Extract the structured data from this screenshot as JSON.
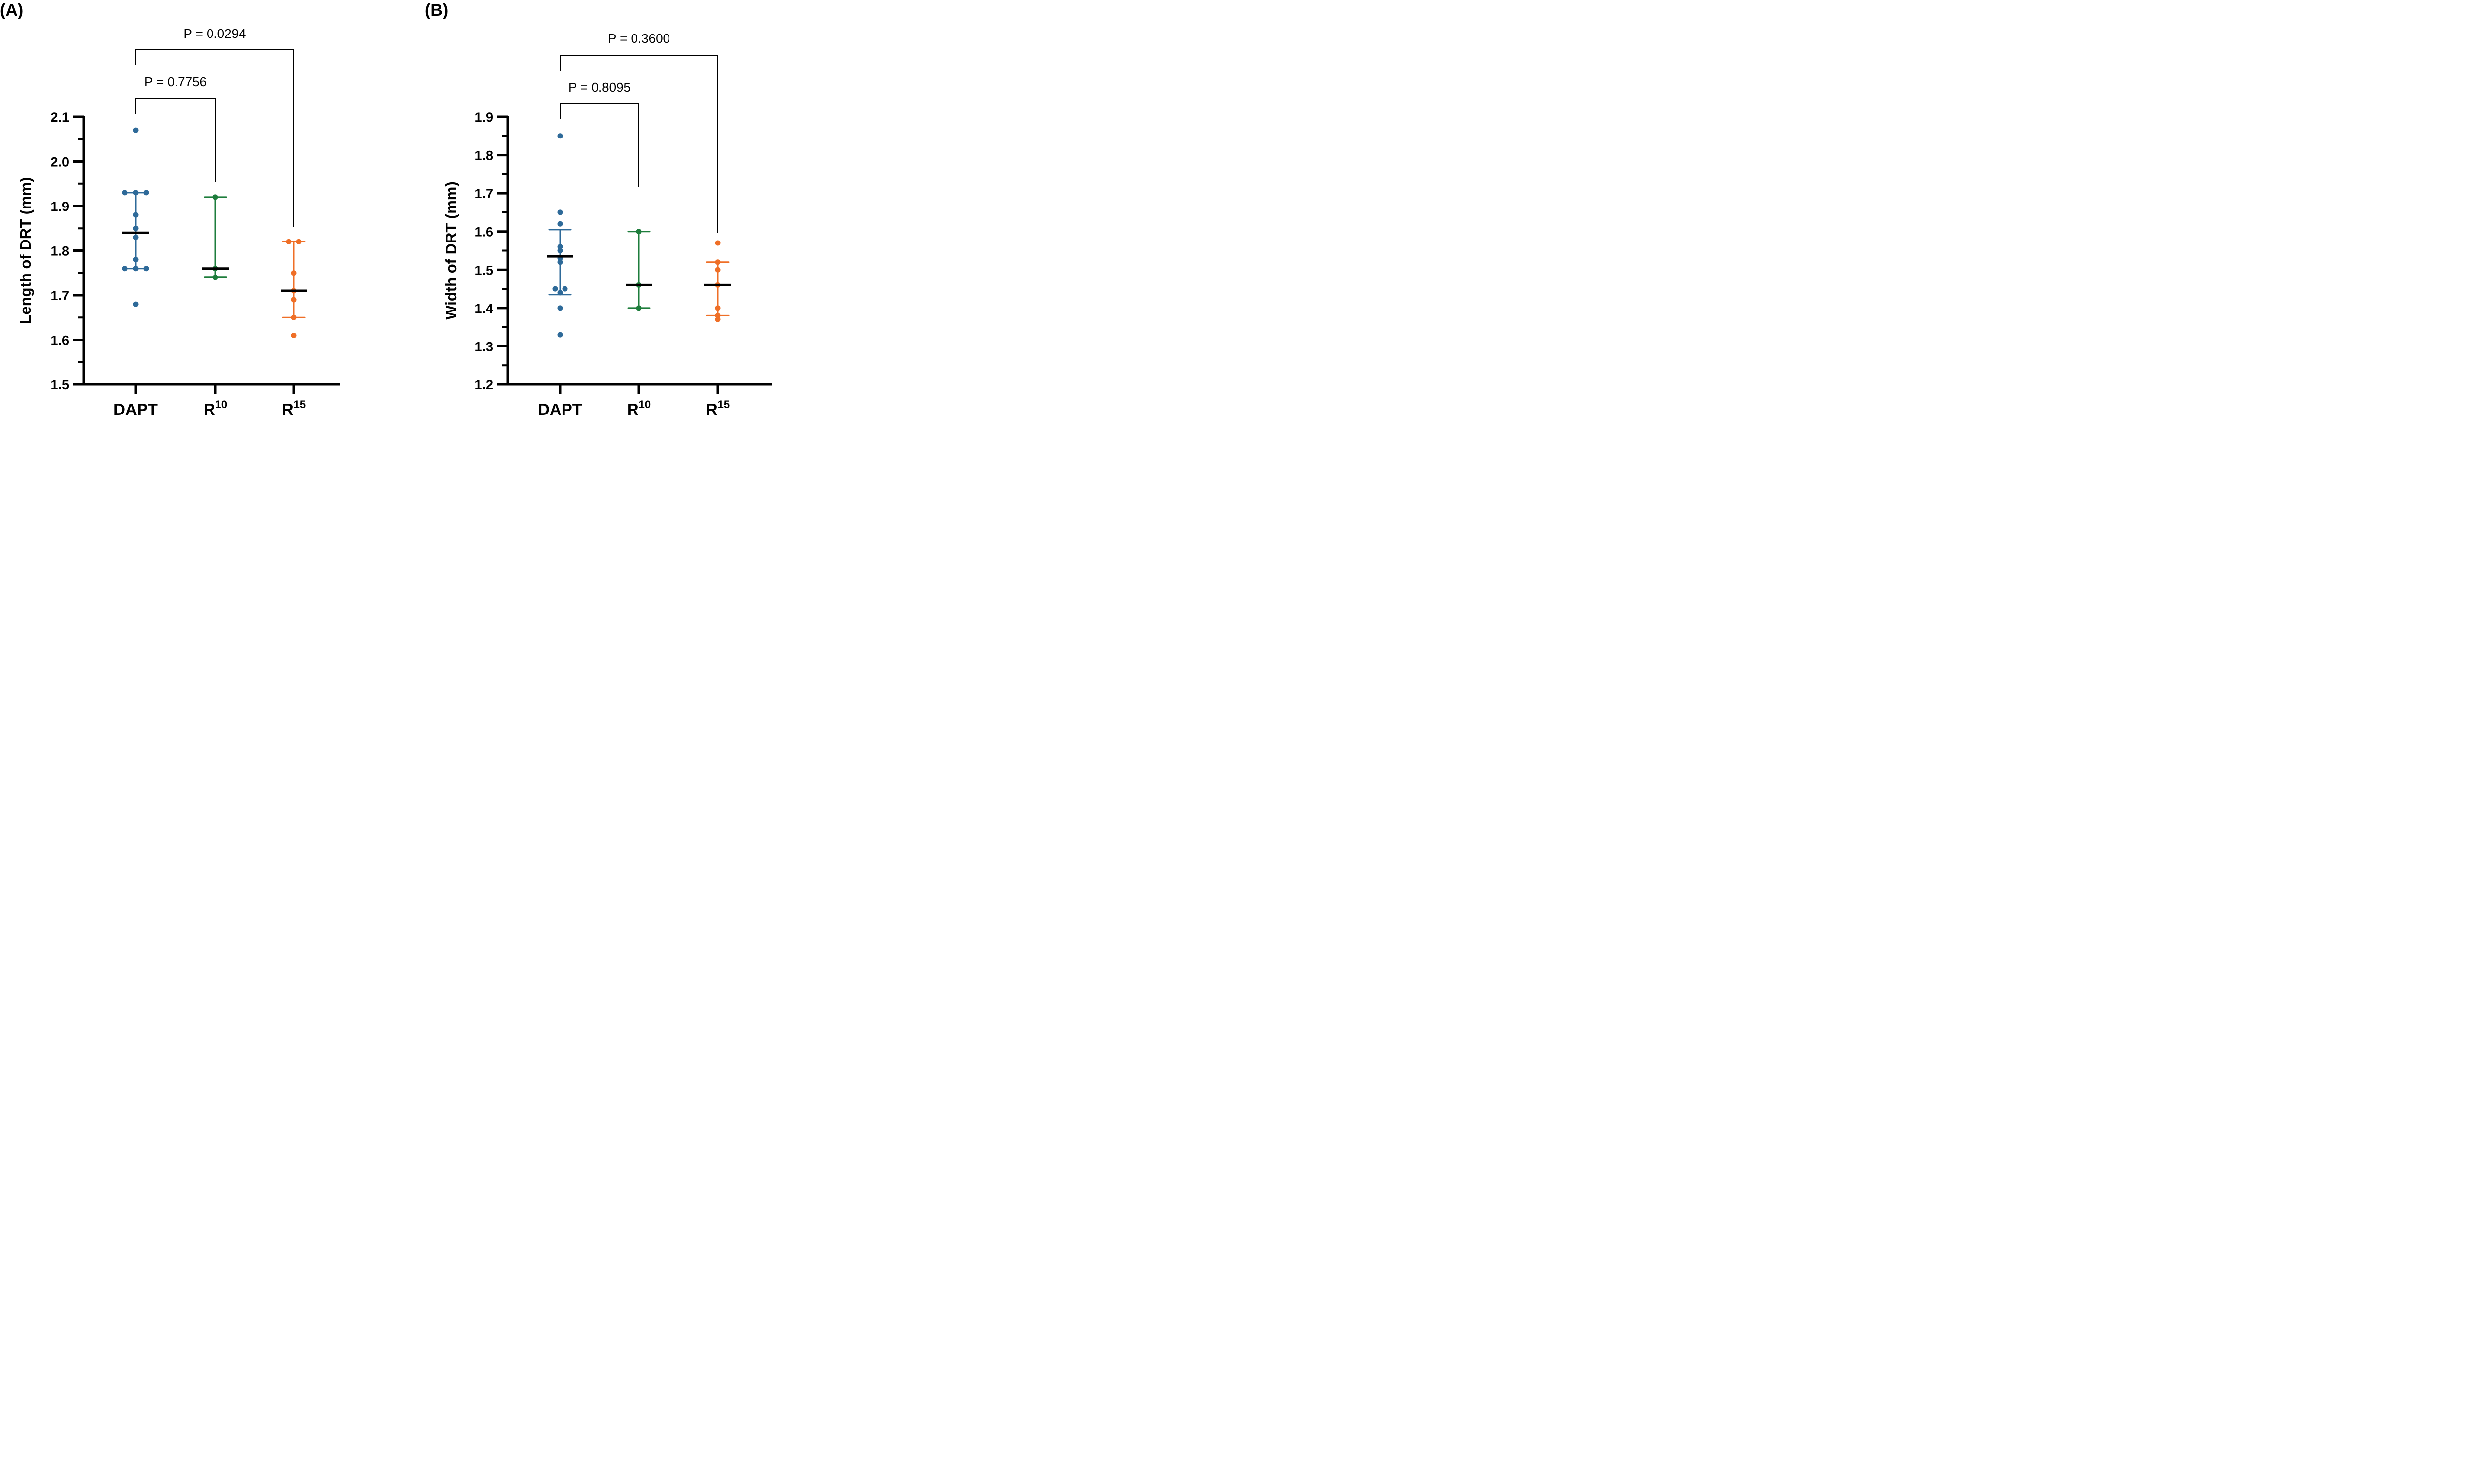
{
  "chart_data": [
    {
      "type": "scatter",
      "panel": "(A)",
      "ylabel": "Length of DRT (mm)",
      "xlabel": "",
      "ylim": [
        1.5,
        2.1
      ],
      "yticks": [
        "1.5",
        "1.6",
        "1.7",
        "1.8",
        "1.9",
        "2.0",
        "2.1"
      ],
      "ytick_values": [
        1.5,
        1.6,
        1.7,
        1.8,
        1.9,
        2.0,
        2.1
      ],
      "minor_tick_step": 0.05,
      "categories": [
        {
          "base": "DAPT",
          "sup": ""
        },
        {
          "base": "R",
          "sup": "10"
        },
        {
          "base": "R",
          "sup": "15"
        }
      ],
      "series": [
        {
          "name": "DAPT",
          "color": "#2e6a99",
          "values": [
            2.07,
            1.93,
            1.93,
            1.93,
            1.88,
            1.85,
            1.83,
            1.78,
            1.76,
            1.76,
            1.76,
            1.68
          ],
          "median": 1.84,
          "q1": 1.76,
          "q3": 1.93
        },
        {
          "name": "R10",
          "color": "#1e7d3c",
          "values": [
            1.92,
            1.76,
            1.74
          ],
          "median": 1.76,
          "q1": 1.74,
          "q3": 1.92
        },
        {
          "name": "R15",
          "color": "#ef6f27",
          "values": [
            1.82,
            1.82,
            1.75,
            1.71,
            1.69,
            1.65,
            1.61
          ],
          "median": 1.71,
          "q1": 1.65,
          "q3": 1.82
        }
      ],
      "comparisons": [
        {
          "from": 0,
          "to": 1,
          "label": "P = 0.7756"
        },
        {
          "from": 0,
          "to": 2,
          "label": "P = 0.0294"
        }
      ],
      "grid": false,
      "legend": "none"
    },
    {
      "type": "scatter",
      "panel": "(B)",
      "ylabel": "Width of DRT (mm)",
      "xlabel": "",
      "ylim": [
        1.2,
        1.9
      ],
      "yticks": [
        "1.2",
        "1.3",
        "1.4",
        "1.5",
        "1.6",
        "1.7",
        "1.8",
        "1.9"
      ],
      "ytick_values": [
        1.2,
        1.3,
        1.4,
        1.5,
        1.6,
        1.7,
        1.8,
        1.9
      ],
      "minor_tick_step": 0.05,
      "categories": [
        {
          "base": "DAPT",
          "sup": ""
        },
        {
          "base": "R",
          "sup": "10"
        },
        {
          "base": "R",
          "sup": "15"
        }
      ],
      "series": [
        {
          "name": "DAPT",
          "color": "#2e6a99",
          "values": [
            1.85,
            1.65,
            1.62,
            1.56,
            1.55,
            1.53,
            1.52,
            1.45,
            1.45,
            1.44,
            1.4,
            1.33
          ],
          "median": 1.535,
          "q1": 1.435,
          "q3": 1.605
        },
        {
          "name": "R10",
          "color": "#1e7d3c",
          "values": [
            1.6,
            1.46,
            1.4
          ],
          "median": 1.46,
          "q1": 1.4,
          "q3": 1.6
        },
        {
          "name": "R15",
          "color": "#ef6f27",
          "values": [
            1.57,
            1.52,
            1.5,
            1.46,
            1.4,
            1.38,
            1.37
          ],
          "median": 1.46,
          "q1": 1.38,
          "q3": 1.52
        }
      ],
      "comparisons": [
        {
          "from": 0,
          "to": 1,
          "label": "P = 0.8095"
        },
        {
          "from": 0,
          "to": 2,
          "label": "P = 0.3600"
        }
      ],
      "grid": false,
      "legend": "none"
    }
  ]
}
